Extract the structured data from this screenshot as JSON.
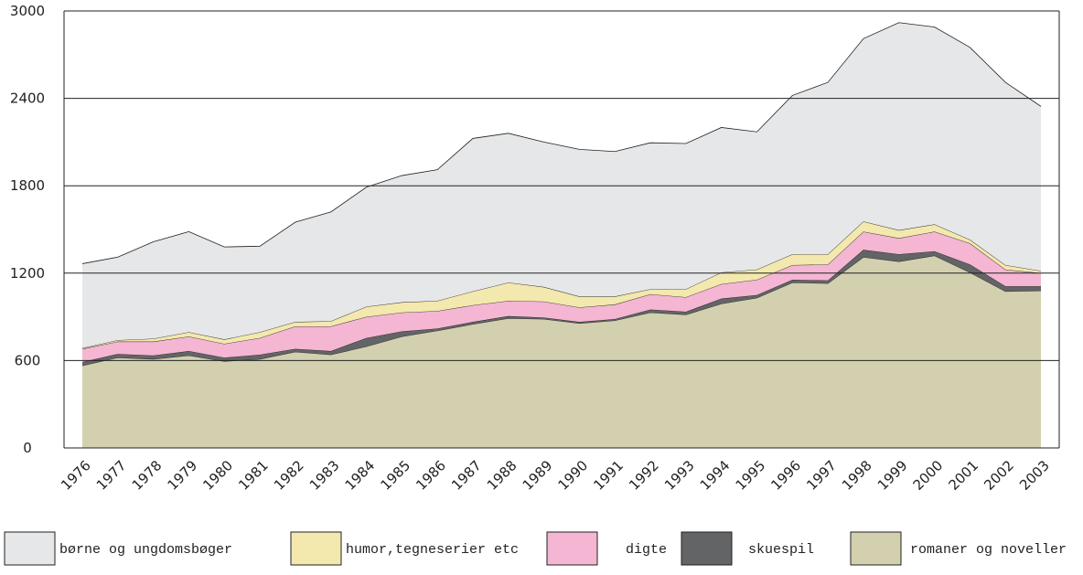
{
  "chart_data": {
    "type": "area",
    "stacked": true,
    "categories": [
      "1976",
      "1977",
      "1978",
      "1979",
      "1980",
      "1981",
      "1982",
      "1983",
      "1984",
      "1985",
      "1986",
      "1987",
      "1988",
      "1989",
      "1990",
      "1991",
      "1992",
      "1993",
      "1994",
      "1995",
      "1996",
      "1997",
      "1998",
      "1999",
      "2000",
      "2001",
      "2002",
      "2003"
    ],
    "series": [
      {
        "name": "børne og ungdomsbøger",
        "color": "#e6e7e8",
        "values": [
          580,
          570,
          665,
          690,
          635,
          590,
          685,
          750,
          820,
          870,
          900,
          1050,
          1025,
          995,
          1010,
          995,
          1005,
          1000,
          995,
          945,
          1090,
          1180,
          1255,
          1425,
          1355,
          1320,
          1255,
          1130
        ]
      },
      {
        "name": "humor,tegneserier etc",
        "color": "#f3e8ad",
        "values": [
          5,
          10,
          20,
          30,
          30,
          40,
          30,
          35,
          70,
          70,
          70,
          95,
          125,
          100,
          75,
          55,
          35,
          55,
          80,
          70,
          75,
          70,
          70,
          55,
          50,
          25,
          30,
          15
        ]
      },
      {
        "name": "digte",
        "color": "#f4b6d2",
        "values": [
          90,
          85,
          95,
          100,
          95,
          115,
          155,
          170,
          145,
          130,
          120,
          115,
          105,
          110,
          100,
          100,
          105,
          100,
          100,
          105,
          100,
          110,
          125,
          110,
          135,
          145,
          115,
          90
        ]
      },
      {
        "name": "skuespil",
        "color": "#636466",
        "values": [
          25,
          25,
          25,
          30,
          25,
          30,
          20,
          25,
          58,
          35,
          15,
          15,
          15,
          10,
          10,
          10,
          20,
          20,
          35,
          20,
          20,
          20,
          50,
          50,
          30,
          55,
          35,
          30
        ]
      },
      {
        "name": "romaner og noveller",
        "color": "#d3d0b0",
        "values": [
          565,
          620,
          610,
          635,
          595,
          610,
          660,
          640,
          697,
          765,
          805,
          850,
          890,
          885,
          855,
          875,
          930,
          915,
          990,
          1030,
          1135,
          1130,
          1310,
          1280,
          1320,
          1205,
          1075,
          1080
        ]
      }
    ],
    "ylim": [
      0,
      3000
    ],
    "yticks": [
      0,
      600,
      1200,
      1800,
      2400,
      3000
    ],
    "grid": true
  }
}
